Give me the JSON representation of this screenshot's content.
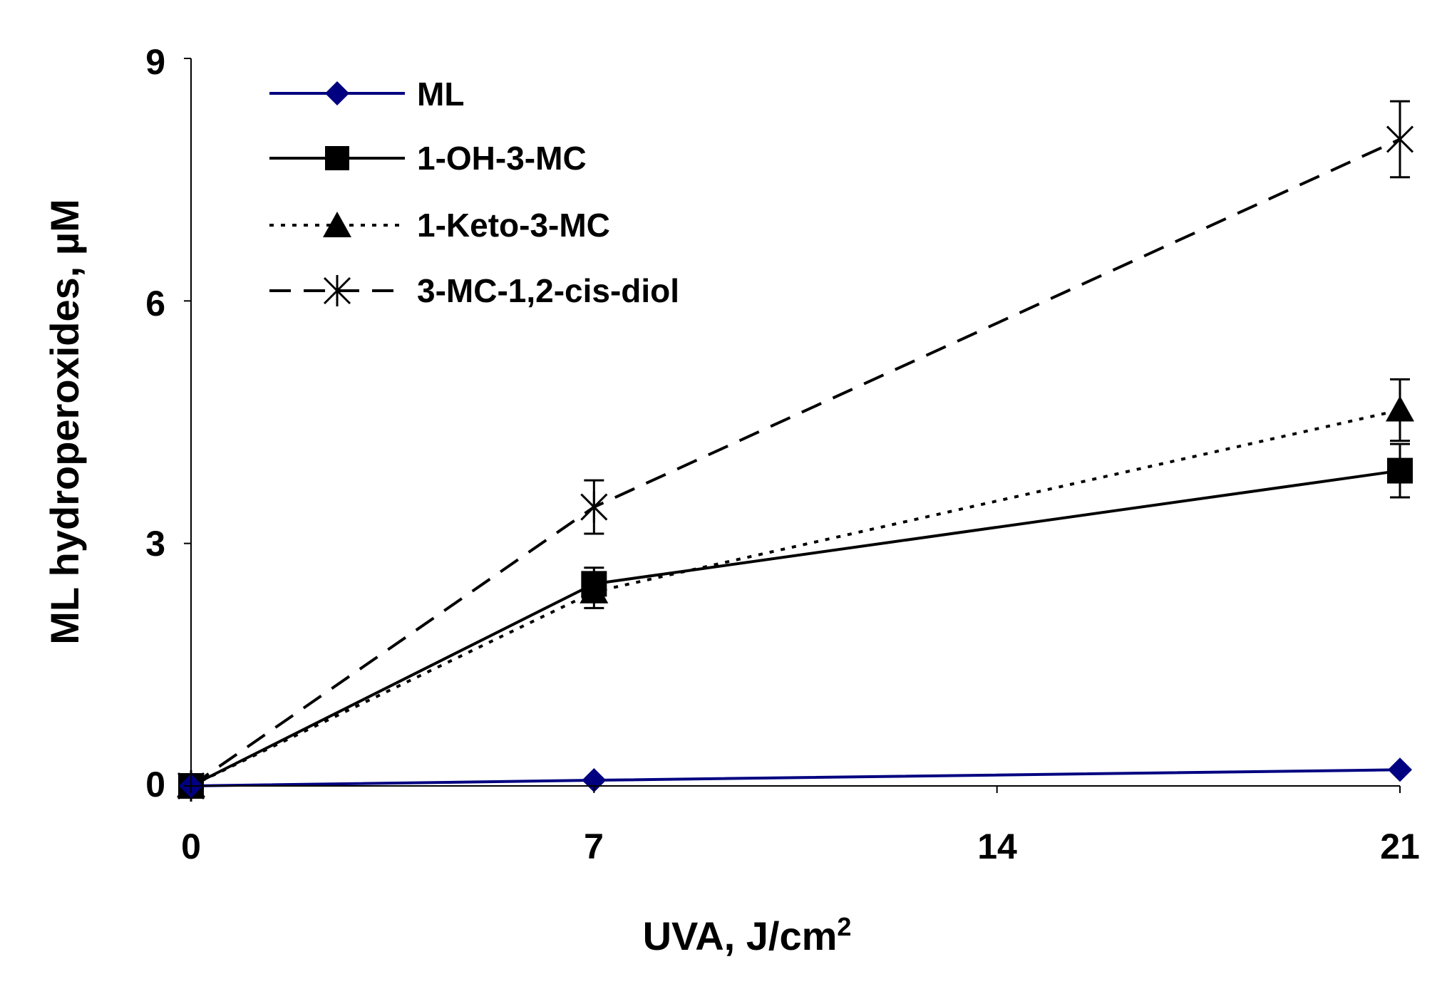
{
  "chart_data": {
    "type": "line",
    "title": "",
    "xlabel": "UVA, J/cm",
    "xlabel_sup": "2",
    "ylabel": "ML hydroperoxides, µM",
    "x": [
      0,
      7,
      21
    ],
    "xlim": [
      0,
      21
    ],
    "ylim": [
      0,
      9
    ],
    "xticks": [
      0,
      7,
      14,
      21
    ],
    "yticks": [
      0,
      3,
      6,
      9
    ],
    "xtick_labels": [
      "0",
      "7",
      "14",
      "21"
    ],
    "ytick_labels": [
      "0",
      "3",
      "6",
      "9"
    ],
    "grid": false,
    "legend_position": "top-left",
    "series": [
      {
        "name": "ML",
        "values": [
          0,
          0.07,
          0.2
        ],
        "errors": [
          0,
          0,
          0
        ],
        "color": "#000080",
        "line_style": "solid",
        "marker": "diamond"
      },
      {
        "name": "1-OH-3-MC",
        "values": [
          0,
          2.5,
          3.9
        ],
        "errors": [
          0,
          0.2,
          0.33
        ],
        "color": "#000000",
        "line_style": "solid",
        "marker": "square"
      },
      {
        "name": "1-Keto-3-MC",
        "values": [
          0,
          2.4,
          4.65
        ],
        "errors": [
          0,
          0.2,
          0.38
        ],
        "color": "#000000",
        "line_style": "dotted",
        "marker": "triangle"
      },
      {
        "name": "3-MC-1,2-cis-diol",
        "values": [
          0,
          3.45,
          8.0
        ],
        "errors": [
          0,
          0.33,
          0.47
        ],
        "color": "#000000",
        "line_style": "dashed",
        "marker": "asterisk-x"
      }
    ]
  }
}
